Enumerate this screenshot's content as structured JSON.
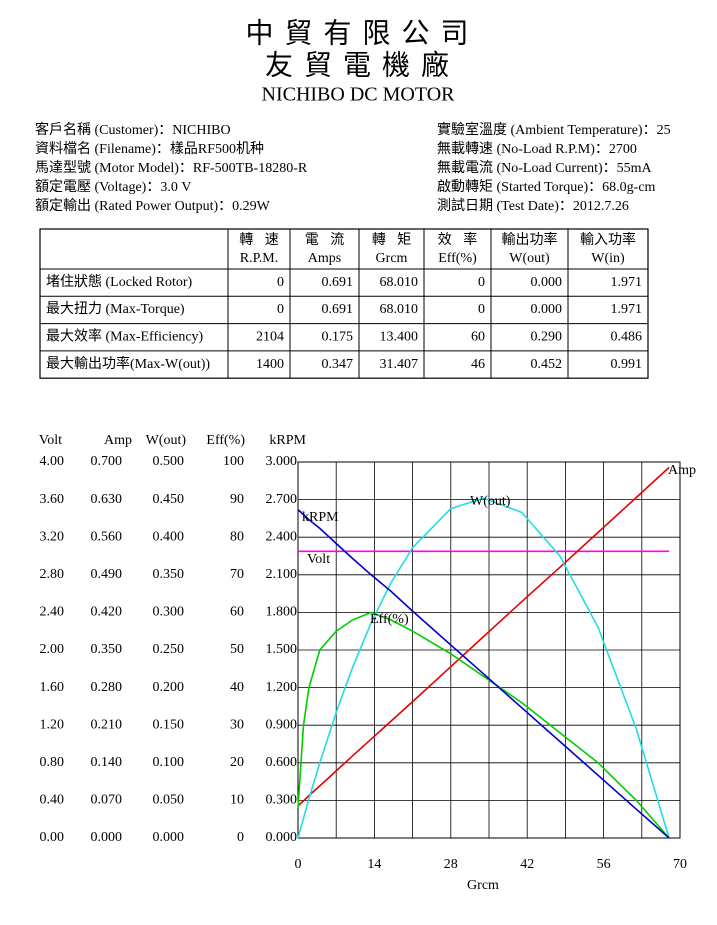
{
  "header": {
    "company": "中 貿 有 限 公 司",
    "factory": "友 貿 電 機 廠",
    "product": "NICHIBO DC MOTOR"
  },
  "info": {
    "left": [
      "客戶名稱 (Customer)：NICHIBO",
      "資料檔名 (Filename)：樣品RF500机种",
      "馬達型號 (Motor Model)：RF-500TB-18280-R",
      "額定電壓 (Voltage)：3.0 V",
      "額定輸出 (Rated Power Output)：0.29W"
    ],
    "right": [
      "實驗室溫度 (Ambient Temperature)：25",
      "無載轉速 (No-Load R.P.M)：2700",
      "無載電流 (No-Load Current)：55mA",
      "啟動轉矩 (Started Torque)：68.0g-cm",
      "測試日期 (Test Date)：2012.7.26"
    ]
  },
  "table": {
    "highlight_color": "#e00000",
    "columns": [
      {
        "zh": "轉 速",
        "en": "R.P.M."
      },
      {
        "zh": "電 流",
        "en": "Amps"
      },
      {
        "zh": "轉 矩",
        "en": "Grcm"
      },
      {
        "zh": "效 率",
        "en": "Eff(%)"
      },
      {
        "zh": "輸出功率",
        "en": "W(out)"
      },
      {
        "zh": "輸入功率",
        "en": "W(in)"
      }
    ],
    "rows": [
      {
        "label": "堵住狀態 (Locked Rotor)",
        "cells": [
          "0",
          "0.691",
          "68.010",
          "0",
          "0.000",
          "1.971"
        ],
        "highlight": 1
      },
      {
        "label": "最大扭力 (Max-Torque)",
        "cells": [
          "0",
          "0.691",
          "68.010",
          "0",
          "0.000",
          "1.971"
        ],
        "highlight": 2
      },
      {
        "label": "最大效率 (Max-Efficiency)",
        "cells": [
          "2104",
          "0.175",
          "13.400",
          "60",
          "0.290",
          "0.486"
        ],
        "highlight": 3
      },
      {
        "label": "最大輸出功率(Max-W(out))",
        "cells": [
          "1400",
          "0.347",
          "31.407",
          "46",
          "0.452",
          "0.991"
        ],
        "highlight": 4
      }
    ]
  },
  "chart_data": {
    "type": "line",
    "x_label": "Grcm",
    "xlim": [
      0,
      70
    ],
    "xticks": [
      0,
      14,
      28,
      42,
      56,
      70
    ],
    "x_grid_step": 7,
    "grid": true,
    "y_axes": [
      {
        "label": "Volt",
        "color": "#e000e0",
        "ylim": [
          0,
          4
        ],
        "yticks": [
          {
            "value": 0,
            "label": "0.00"
          },
          {
            "value": 0.4,
            "label": "0.40"
          },
          {
            "value": 0.8,
            "label": "0.80"
          },
          {
            "value": 1.2,
            "label": "1.20"
          },
          {
            "value": 1.6,
            "label": "1.60"
          },
          {
            "value": 2,
            "label": "2.00"
          },
          {
            "value": 2.4,
            "label": "2.40"
          },
          {
            "value": 2.8,
            "label": "2.80"
          },
          {
            "value": 3.2,
            "label": "3.20"
          },
          {
            "value": 3.6,
            "label": "3.60"
          },
          {
            "value": 4,
            "label": "4.00"
          }
        ]
      },
      {
        "label": "Amp",
        "color": "#e60000",
        "ylim": [
          0,
          0.7
        ],
        "yticks": [
          {
            "value": 0,
            "label": "0.000"
          },
          {
            "value": 0.07,
            "label": "0.070"
          },
          {
            "value": 0.14,
            "label": "0.140"
          },
          {
            "value": 0.21,
            "label": "0.210"
          },
          {
            "value": 0.28,
            "label": "0.280"
          },
          {
            "value": 0.35,
            "label": "0.350"
          },
          {
            "value": 0.42,
            "label": "0.420"
          },
          {
            "value": 0.49,
            "label": "0.490"
          },
          {
            "value": 0.56,
            "label": "0.560"
          },
          {
            "value": 0.63,
            "label": "0.630"
          },
          {
            "value": 0.7,
            "label": "0.700"
          }
        ]
      },
      {
        "label": "W(out)",
        "color": "#33d6e0",
        "ylim": [
          0,
          0.5
        ],
        "yticks": [
          {
            "value": 0,
            "label": "0.000"
          },
          {
            "value": 0.05,
            "label": "0.050"
          },
          {
            "value": 0.1,
            "label": "0.100"
          },
          {
            "value": 0.15,
            "label": "0.150"
          },
          {
            "value": 0.2,
            "label": "0.200"
          },
          {
            "value": 0.25,
            "label": "0.250"
          },
          {
            "value": 0.3,
            "label": "0.300"
          },
          {
            "value": 0.35,
            "label": "0.350"
          },
          {
            "value": 0.4,
            "label": "0.400"
          },
          {
            "value": 0.45,
            "label": "0.450"
          },
          {
            "value": 0.5,
            "label": "0.500"
          }
        ]
      },
      {
        "label": "Eff(%)",
        "color": "#00cc00",
        "ylim": [
          0,
          100
        ],
        "yticks": [
          0,
          10,
          20,
          30,
          40,
          50,
          60,
          70,
          80,
          90,
          100
        ]
      },
      {
        "label": "kRPM",
        "color": "#0000cc",
        "ylim": [
          0,
          3
        ],
        "yticks": [
          {
            "value": 0,
            "label": "0.000"
          },
          {
            "value": 0.3,
            "label": "0.300"
          },
          {
            "value": 0.6,
            "label": "0.600"
          },
          {
            "value": 0.9,
            "label": "0.900"
          },
          {
            "value": 1.2,
            "label": "1.200"
          },
          {
            "value": 1.5,
            "label": "1.500"
          },
          {
            "value": 1.8,
            "label": "1.800"
          },
          {
            "value": 2.1,
            "label": "2.100"
          },
          {
            "value": 2.4,
            "label": "2.400"
          },
          {
            "value": 2.7,
            "label": "2.700"
          },
          {
            "value": 3,
            "label": "3.000"
          }
        ]
      }
    ],
    "x": [
      0,
      1,
      2,
      4,
      7,
      10,
      13.4,
      17,
      21,
      28,
      34,
      41,
      48,
      55,
      62,
      68
    ],
    "series": [
      {
        "name": "Volt",
        "color": "#ff00ff",
        "axis": 0,
        "values": [
          3.05,
          3.05,
          3.05,
          3.05,
          3.05,
          3.05,
          3.05,
          3.05,
          3.05,
          3.05,
          3.05,
          3.05,
          3.05,
          3.05,
          3.05,
          3.05
        ]
      },
      {
        "name": "Amp",
        "color": "#e60000",
        "axis": 1,
        "values": [
          0.06,
          0.069,
          0.079,
          0.097,
          0.125,
          0.153,
          0.184,
          0.217,
          0.254,
          0.319,
          0.375,
          0.44,
          0.504,
          0.569,
          0.634,
          0.69
        ]
      },
      {
        "name": "W(out)",
        "color": "#22dde0",
        "axis": 2,
        "values": [
          0,
          0.026,
          0.052,
          0.1,
          0.167,
          0.227,
          0.286,
          0.339,
          0.386,
          0.438,
          0.452,
          0.433,
          0.375,
          0.28,
          0.145,
          0
        ]
      },
      {
        "name": "Eff(%)",
        "color": "#00cc00",
        "axis": 3,
        "values": [
          8,
          30,
          40,
          50,
          55,
          58,
          60,
          58,
          55,
          49,
          43,
          36,
          28,
          20,
          10,
          0
        ]
      },
      {
        "name": "kRPM",
        "color": "#0000cc",
        "axis": 4,
        "values": [
          2.62,
          2.58,
          2.54,
          2.47,
          2.35,
          2.23,
          2.1,
          1.97,
          1.81,
          1.54,
          1.31,
          1.04,
          0.77,
          0.5,
          0.23,
          0
        ]
      }
    ]
  }
}
